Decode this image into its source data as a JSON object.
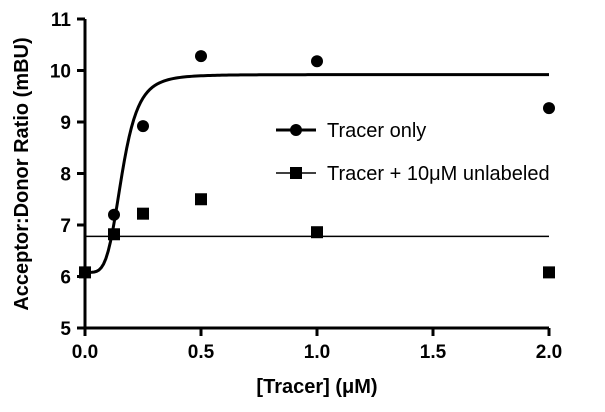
{
  "chart_data": {
    "type": "scatter",
    "xlabel": "[Tracer] (μM)",
    "ylabel": "Acceptor:Donor Ratio (mBU)",
    "xlim": [
      0,
      2
    ],
    "ylim": [
      5,
      11
    ],
    "x_ticks": [
      "0.0",
      "0.5",
      "1.0",
      "1.5",
      "2.0"
    ],
    "y_ticks": [
      "5",
      "6",
      "7",
      "8",
      "9",
      "10",
      "11"
    ],
    "grid": false,
    "legend_position": "right",
    "series": [
      {
        "name": "Tracer only",
        "marker": "circle",
        "x": [
          0,
          0.125,
          0.25,
          0.5,
          1.0,
          2.0
        ],
        "y": [
          6.08,
          7.2,
          8.92,
          10.28,
          10.18,
          9.27
        ],
        "fit": {
          "type": "sigmoid",
          "bottom": 6.08,
          "top": 9.92,
          "ec50": 0.16,
          "hill": 4.5
        }
      },
      {
        "name": "Tracer + 10μM unlabeled",
        "marker": "square",
        "x": [
          0,
          0.125,
          0.25,
          0.5,
          1.0,
          2.0
        ],
        "y": [
          6.08,
          6.82,
          7.22,
          7.5,
          6.86,
          6.08
        ],
        "fit": {
          "type": "constant",
          "value": 6.78
        }
      }
    ]
  }
}
